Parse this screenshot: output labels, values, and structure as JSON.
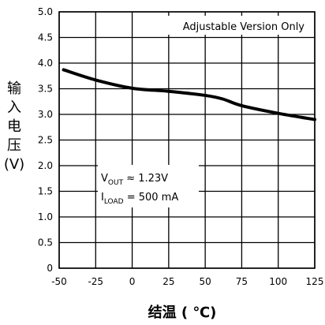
{
  "chart_data": {
    "type": "line",
    "xlabel": "结温 ( ℃)",
    "ylabel_chars": [
      "输",
      "入",
      "电",
      "压",
      "(V)"
    ],
    "xlim": [
      -50,
      125
    ],
    "ylim": [
      0,
      5.0
    ],
    "x_ticks": [
      "-50",
      "-25",
      "0",
      "25",
      "50",
      "75",
      "100",
      "125"
    ],
    "y_ticks": [
      "0",
      "0.5",
      "1.0",
      "1.5",
      "2.0",
      "2.5",
      "3.0",
      "3.5",
      "4.0",
      "4.5",
      "5.0"
    ],
    "grid": true,
    "corner_note": "Adjustable Version Only",
    "conditions": {
      "vout": {
        "prefix": "V",
        "sub": "OUT",
        "rest": " ≈ 1.23V"
      },
      "iload": {
        "prefix": "I",
        "sub": "LOAD",
        "rest": " = 500 mA"
      }
    },
    "series": [
      {
        "x": [
          -47,
          -25,
          0,
          25,
          50,
          62,
          75,
          100,
          125
        ],
        "y": [
          3.87,
          3.67,
          3.51,
          3.45,
          3.37,
          3.3,
          3.17,
          3.02,
          2.9
        ]
      }
    ]
  }
}
